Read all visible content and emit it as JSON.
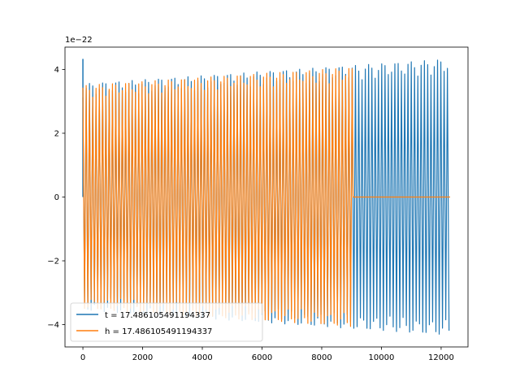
{
  "chart_data": {
    "type": "line",
    "title": "",
    "xlabel": "",
    "ylabel": "",
    "xlim": [
      -600,
      12900
    ],
    "ylim": [
      -4.7,
      4.7
    ],
    "y_offset_label": "1e−22",
    "x_ticks": [
      0,
      2000,
      4000,
      6000,
      8000,
      10000,
      12000
    ],
    "x_tick_labels": [
      "0",
      "2000",
      "4000",
      "6000",
      "8000",
      "10000",
      "12000"
    ],
    "y_ticks": [
      -4,
      -2,
      0,
      2,
      4
    ],
    "y_tick_labels": [
      "−4",
      "−2",
      "0",
      "2",
      "4"
    ],
    "grid": false,
    "legend_position": "lower-left",
    "series": [
      {
        "name": "t = 17.486105491194337",
        "color": "#1f77b4",
        "x_range": [
          0,
          12300
        ],
        "amplitude_start": 3.55,
        "amplitude_end": 4.33,
        "oscillation": "dense"
      },
      {
        "name": "h = 17.486105491194337",
        "color": "#ff7f0e",
        "x_range": [
          0,
          12300
        ],
        "signal_end": 9050,
        "amplitude_start": 3.55,
        "amplitude_end": 4.33,
        "after_signal_value": 0,
        "oscillation": "dense"
      }
    ]
  }
}
